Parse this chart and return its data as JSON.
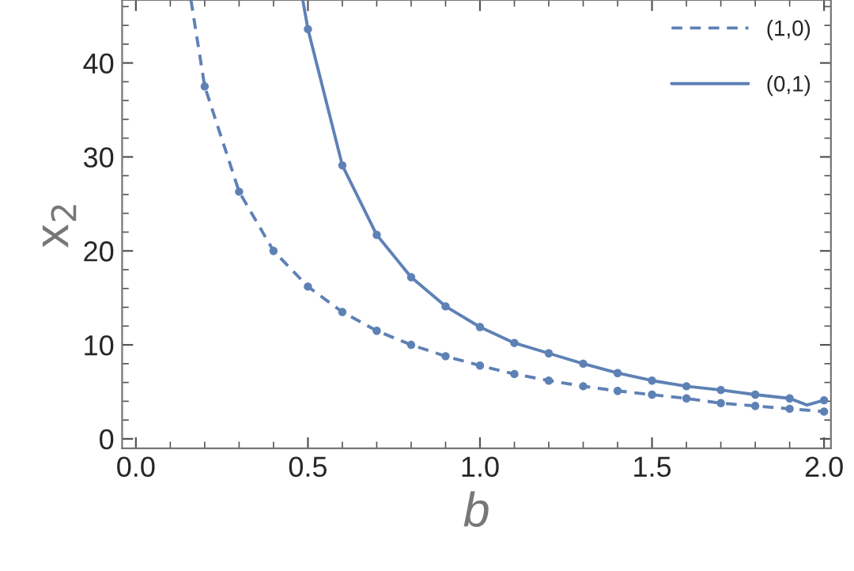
{
  "chart_data": {
    "type": "line",
    "xlabel": "b",
    "ylabel": "x$_{2}$",
    "xlim": [
      -0.04,
      2.02
    ],
    "ylim": [
      -1.0,
      46.7
    ],
    "xticks": [
      {
        "value": 0.0,
        "label": "0.0"
      },
      {
        "value": 0.5,
        "label": "0.5"
      },
      {
        "value": 1.0,
        "label": "1.0"
      },
      {
        "value": 1.5,
        "label": "1.5"
      },
      {
        "value": 2.0,
        "label": "2.0"
      }
    ],
    "yticks": [
      0,
      10,
      20,
      30,
      40
    ],
    "legend": "top right",
    "grid": false,
    "series": [
      {
        "name": "(1,0)",
        "line_style": "dashed",
        "marker": "none",
        "color": "#5e81b5",
        "x": [
          0.16,
          0.2,
          0.3,
          0.4,
          0.5,
          0.6,
          0.7,
          0.8,
          0.9,
          1.0,
          1.1,
          1.2,
          1.3,
          1.4,
          1.5,
          1.6,
          1.7,
          1.8,
          1.9,
          2.0
        ],
        "values": [
          46.7,
          37.5,
          26.3,
          20.0,
          16.2,
          13.5,
          11.5,
          10.0,
          8.8,
          7.8,
          6.9,
          6.2,
          5.6,
          5.1,
          4.7,
          4.3,
          3.8,
          3.5,
          3.2,
          2.9
        ]
      },
      {
        "name": "(0,1)",
        "line_style": "solid",
        "marker": "none",
        "color": "#5e81b5",
        "x": [
          0.485,
          0.5,
          0.6,
          0.7,
          0.8,
          0.9,
          1.0,
          1.1,
          1.2,
          1.3,
          1.4,
          1.5,
          1.6,
          1.7,
          1.8,
          1.9,
          1.95,
          2.0
        ],
        "values": [
          46.7,
          43.6,
          29.1,
          21.7,
          17.2,
          14.1,
          11.9,
          10.2,
          9.1,
          8.0,
          7.0,
          6.2,
          5.6,
          5.2,
          4.7,
          4.3,
          3.6,
          4.1
        ]
      },
      {
        "type": "scatter",
        "marker": "circle",
        "color": "#5e81b5",
        "x": [
          0.2,
          0.3,
          0.4,
          0.5,
          0.6,
          0.7,
          0.8,
          0.9,
          1.0,
          1.1,
          1.2,
          1.3,
          1.4,
          1.5,
          1.6,
          1.7,
          1.8,
          1.9,
          2.0
        ],
        "values": [
          37.5,
          26.3,
          20.0,
          16.2,
          13.5,
          11.5,
          10.0,
          8.8,
          7.8,
          6.9,
          6.2,
          5.6,
          5.1,
          4.7,
          4.3,
          3.8,
          3.5,
          3.2,
          2.9
        ]
      },
      {
        "type": "scatter",
        "marker": "circle",
        "color": "#5e81b5",
        "x": [
          0.5,
          0.6,
          0.7,
          0.8,
          0.9,
          1.0,
          1.1,
          1.2,
          1.3,
          1.4,
          1.5,
          1.6,
          1.7,
          1.8,
          1.9,
          2.0
        ],
        "values": [
          43.6,
          29.1,
          21.7,
          17.2,
          14.1,
          11.9,
          10.2,
          9.1,
          8.0,
          7.0,
          6.2,
          5.6,
          5.2,
          4.7,
          4.3,
          4.1
        ]
      }
    ]
  }
}
